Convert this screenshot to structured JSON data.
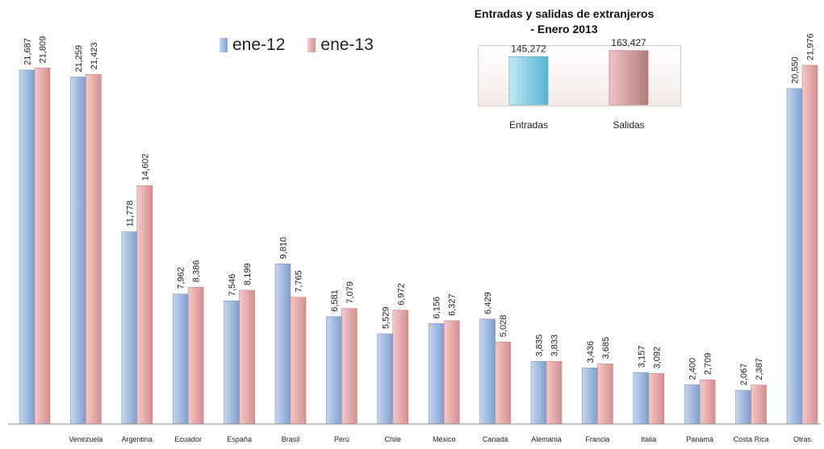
{
  "legend": {
    "series1": "ene-12",
    "series2": "ene-13"
  },
  "colors": {
    "series1_light": "#c6d6ee",
    "series1_dark": "#7f9fce",
    "series2_light": "#f4c9c9",
    "series2_dark": "#d58f8f",
    "entradas_light": "#bfe8f4",
    "entradas_dark": "#55b5d3",
    "salidas_light": "#f0c4c4",
    "salidas_dark": "#b57c7c"
  },
  "chart_data": [
    {
      "type": "bar",
      "categories": [
        "",
        "Venezuela",
        "Argentina",
        "Ecuador",
        "España",
        "Brasil",
        "Perú",
        "Chile",
        "México",
        "Canadá",
        "Alemania",
        "Francia",
        "Italia",
        "Panamá",
        "Costa Rica",
        "Otras"
      ],
      "series": [
        {
          "name": "ene-12",
          "values": [
            21687,
            21259,
            11778,
            7962,
            7546,
            9810,
            6581,
            5529,
            6156,
            6429,
            3835,
            3436,
            3157,
            2400,
            2067,
            20550
          ],
          "labels": [
            "21,687",
            "21,259",
            "11,778",
            "7,962",
            "7,546",
            "9,810",
            "6,581",
            "5,529",
            "6,156",
            "6,429",
            "3,835",
            "3,436",
            "3,157",
            "2,400",
            "2,067",
            "20,550"
          ]
        },
        {
          "name": "ene-13",
          "values": [
            21809,
            21423,
            14602,
            8386,
            8199,
            7765,
            7079,
            6972,
            6327,
            5028,
            3833,
            3685,
            3092,
            2709,
            2387,
            21976
          ],
          "labels": [
            "21,809",
            "21,423",
            "14,602",
            "8,386",
            "8,199",
            "7,765",
            "7,079",
            "6,972",
            "6,327",
            "5,028",
            "3,833",
            "3,685",
            "3,092",
            "2,709",
            "2,387",
            "21,976"
          ]
        }
      ],
      "ylim": [
        0,
        24000
      ],
      "legend_position": "top"
    },
    {
      "type": "bar",
      "title": "Entradas y salidas de extranjeros - Enero 2013",
      "categories": [
        "Entradas",
        "Salidas"
      ],
      "values": [
        145272,
        163427
      ],
      "labels": [
        "145,272",
        "163,427"
      ],
      "ylim": [
        0,
        180000
      ]
    }
  ]
}
